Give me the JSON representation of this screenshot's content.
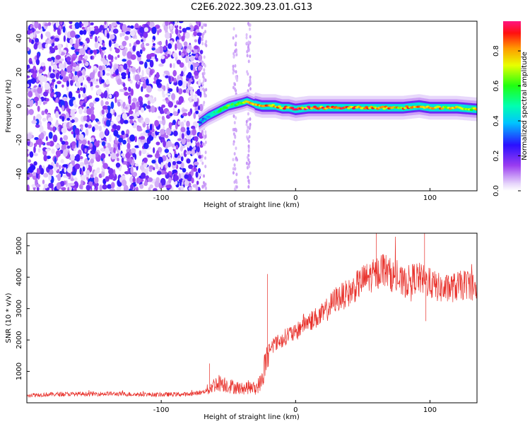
{
  "title": "C2E6.2022.309.23.01.G13",
  "chart_data": [
    {
      "type": "heatmap",
      "xlabel": "Height of straight line (km)",
      "ylabel": "Frequency (Hz)",
      "xlim": [
        -200,
        135
      ],
      "ylim": [
        -50,
        50
      ],
      "x_ticks": [
        -100,
        0,
        100
      ],
      "y_ticks": [
        -40,
        -20,
        0,
        20,
        40
      ],
      "colorbar": {
        "label": "Normalized spectral amplitude",
        "range": [
          0.0,
          0.97
        ],
        "ticks": [
          "0.0",
          "0.2",
          "0.4",
          "0.6",
          "0.8"
        ],
        "colormap": "rainbow (white-violet-blue-cyan-green-yellow-orange-red-magenta)"
      },
      "signal_trace": {
        "description": "frequency ridge of the strong signal",
        "x": [
          -72,
          -65,
          -60,
          -55,
          -50,
          -45,
          -40,
          -36,
          -33,
          -30,
          -25,
          -20,
          -15,
          -10,
          -5,
          0,
          10,
          20,
          40,
          60,
          80,
          92,
          100,
          120,
          135
        ],
        "y": [
          -10,
          -6,
          -4,
          -2,
          0,
          1,
          2,
          3,
          2,
          1,
          0,
          0,
          0,
          -1,
          -1,
          -2,
          -1,
          -1,
          -1,
          -1,
          -1,
          0,
          -1,
          -1,
          -2
        ],
        "amplitude": [
          0.3,
          0.45,
          0.55,
          0.6,
          0.65,
          0.6,
          0.7,
          0.75,
          0.8,
          0.8,
          0.85,
          0.9,
          0.9,
          0.9,
          0.95,
          0.95,
          0.95,
          0.95,
          0.9,
          0.85,
          0.85,
          0.9,
          0.85,
          0.8,
          0.75
        ]
      },
      "noise_region": {
        "x_range": [
          -200,
          -70
        ],
        "amplitude": "low (0.0-0.3)"
      }
    },
    {
      "type": "line",
      "xlabel": "Height of straight line (km)",
      "ylabel": "SNR (10 * v/v)",
      "xlim": [
        -200,
        135
      ],
      "ylim": [
        0,
        5400
      ],
      "x_ticks": [
        -100,
        0,
        100
      ],
      "y_ticks": [
        1000,
        2000,
        3000,
        4000,
        5000
      ],
      "series": [
        {
          "color": "#e8302a",
          "x": [
            -200,
            -180,
            -160,
            -140,
            -120,
            -100,
            -90,
            -80,
            -75,
            -70,
            -65,
            -60,
            -55,
            -50,
            -45,
            -40,
            -35,
            -30,
            -25,
            -22,
            -20,
            -15,
            -10,
            -5,
            0,
            5,
            10,
            20,
            30,
            40,
            50,
            60,
            65,
            70,
            80,
            90,
            95,
            100,
            110,
            120,
            130,
            135
          ],
          "y": [
            250,
            270,
            280,
            290,
            270,
            260,
            270,
            270,
            300,
            330,
            420,
            600,
            650,
            550,
            500,
            450,
            500,
            450,
            700,
            1400,
            1700,
            1900,
            2000,
            2200,
            2200,
            2500,
            2600,
            2800,
            3300,
            3500,
            3900,
            4100,
            4300,
            4100,
            3800,
            4000,
            3900,
            3800,
            3600,
            3700,
            3800,
            3500
          ]
        }
      ]
    }
  ]
}
